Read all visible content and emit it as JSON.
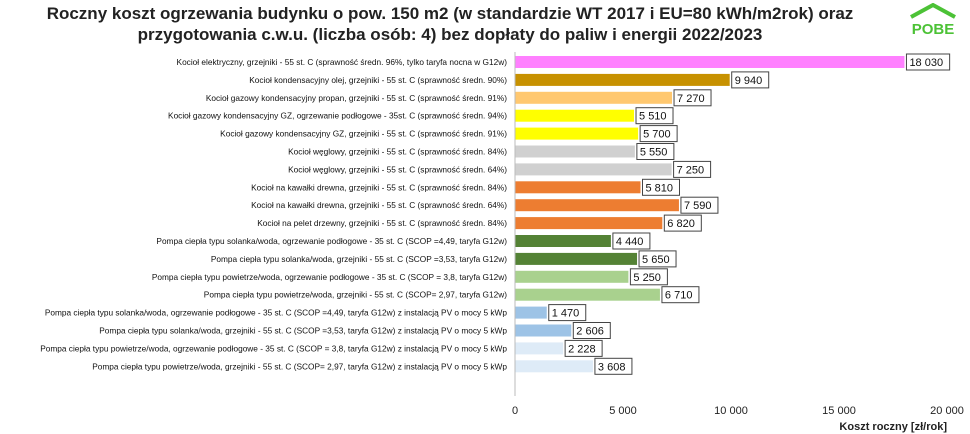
{
  "chart_data": {
    "type": "bar",
    "orientation": "horizontal",
    "title_line1": "Roczny koszt ogrzewania budynku  o pow. 150 m2 (w standardzie WT 2017 i EU=80 kWh/m2rok) oraz",
    "title_line2": "przygotowania c.w.u. (liczba osób: 4) bez dopłaty do paliw i energii 2022/2023",
    "xlabel": "Koszt roczny [zł/rok]",
    "xlim": [
      0,
      20000
    ],
    "xticks": [
      0,
      5000,
      10000,
      15000,
      20000
    ],
    "xtick_labels": [
      "0",
      "5 000",
      "10 000",
      "15 000",
      "20 000"
    ],
    "grid": false,
    "categories": [
      "Kocioł  elektryczny,  grzejniki - 55 st. C  (sprawność średn. 96%, tylko taryfa nocna w G12w)",
      "Kocioł  kondensacyjny olej,  grzejniki - 55 st. C  (sprawność średn. 90%)",
      "Kocioł gazowy kondensacyjny propan, grzejniki - 55 st. C  (sprawność średn. 91%)",
      "Kocioł gazowy kondensacyjny GZ, ogrzewanie podłogowe - 35st. C  (sprawność średn. 94%)",
      "Kocioł gazowy kondensacyjny GZ, grzejniki - 55 st. C  (sprawność średn. 91%)",
      "Kocioł węglowy,  grzejniki - 55 st. C  (sprawność średn. 84%)",
      "Kocioł węglowy,  grzejniki - 55 st. C  (sprawność średn. 64%)",
      "Kocioł na kawałki drewna, grzejniki - 55 st. C (sprawność średn. 84%)",
      "Kocioł na kawałki drewna, grzejniki - 55 st. C  (sprawność średn. 64%)",
      "Kocioł na pelet drzewny, grzejniki - 55 st. C (sprawność średn. 84%)",
      "Pompa ciepła typu solanka/woda, ogrzewanie podłogowe - 35 st. C  (SCOP =4,49, taryfa G12w)",
      "Pompa ciepła typu solanka/woda, grzejniki - 55 st. C (SCOP =3,53, taryfa G12w)",
      "Pompa ciepła typu powietrze/woda, ogrzewanie podłogowe - 35 st. C (SCOP = 3,8, taryfa G12w)",
      "Pompa ciepła typu powietrze/woda, grzejniki - 55 st. C (SCOP= 2,97, taryfa G12w)",
      "Pompa ciepła typu solanka/woda, ogrzewanie podłogowe - 35 st. C  (SCOP =4,49, taryfa G12w) z instalacją PV o mocy 5 kWp",
      "Pompa ciepła typu solanka/woda, grzejniki - 55 st. C (SCOP =3,53, taryfa G12w) z instalacją PV o mocy 5 kWp",
      "Pompa ciepła typu powietrze/woda, ogrzewanie podłogowe - 35 st. C (SCOP = 3,8, taryfa G12w) z instalacją PV o mocy 5 kWp",
      "Pompa ciepła typu powietrze/woda, grzejniki - 55 st. C (SCOP= 2,97, taryfa G12w) z instalacją PV o mocy 5 kWp"
    ],
    "values": [
      18030,
      9940,
      7270,
      5510,
      5700,
      5550,
      7250,
      5810,
      7590,
      6820,
      4440,
      5650,
      5250,
      6710,
      1470,
      2606,
      2228,
      3608
    ],
    "data_labels": [
      "18 030",
      "9 940",
      "7 270",
      "5 510",
      "5 700",
      "5 550",
      "7 250",
      "5 810",
      "7 590",
      "6 820",
      "4 440",
      "5 650",
      "5 250",
      "6 710",
      "1 470",
      "2 606",
      "2 228",
      "3 608"
    ],
    "colors": [
      "#ff80ff",
      "#c79100",
      "#ffc870",
      "#ffff00",
      "#ffff00",
      "#d0d0d0",
      "#d0d0d0",
      "#ed7d31",
      "#ed7d31",
      "#ed7d31",
      "#548235",
      "#548235",
      "#a9d18e",
      "#a9d18e",
      "#9dc3e6",
      "#9dc3e6",
      "#deebf7",
      "#deebf7"
    ]
  },
  "logo": {
    "text": "POBE",
    "color": "#4cc236"
  }
}
